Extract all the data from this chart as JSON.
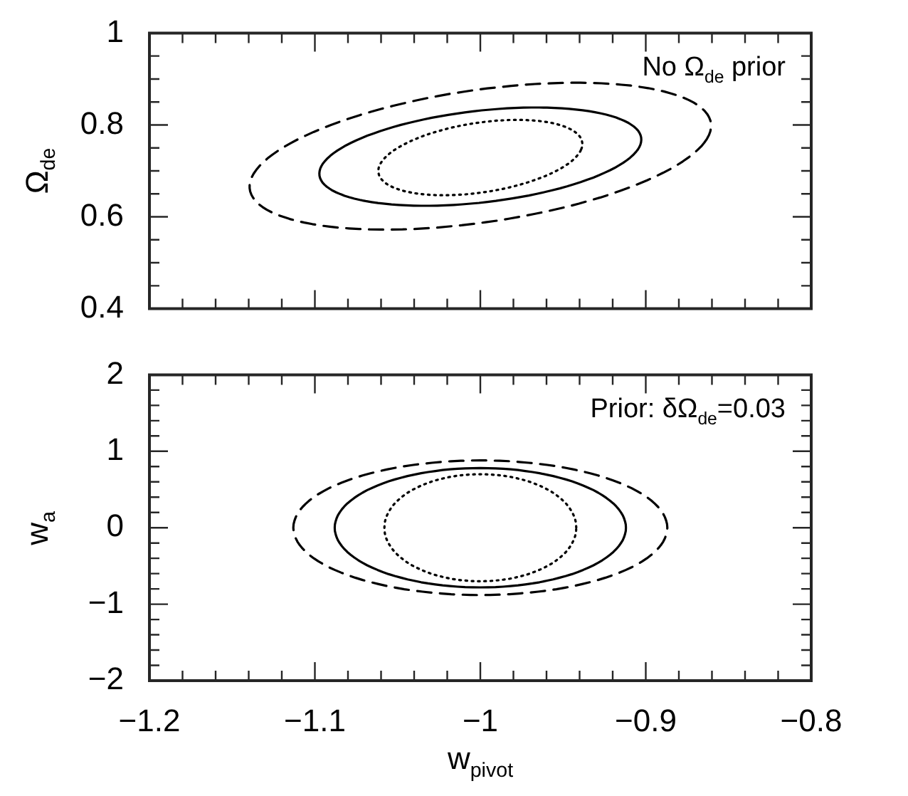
{
  "chart_data": [
    {
      "type": "line",
      "ylabel": "Ω$_{de}$",
      "annotations": [
        "No Ω$_{de}$ prior"
      ],
      "xlim": [
        -1.2,
        -0.8
      ],
      "ylim": [
        0.4,
        1
      ],
      "tick_labels": "y",
      "xticks": [
        -1.2,
        {
          "value": -1.18,
          "label": null
        },
        {
          "value": -1.16,
          "label": null
        },
        {
          "value": -1.14,
          "label": null
        },
        {
          "value": -1.12,
          "label": null
        },
        -1.1,
        {
          "value": -1.08,
          "label": null
        },
        {
          "value": -1.06,
          "label": null
        },
        {
          "value": -1.04,
          "label": null
        },
        {
          "value": -1.02,
          "label": null
        },
        -1,
        {
          "value": -0.98,
          "label": null
        },
        {
          "value": -0.96,
          "label": null
        },
        {
          "value": -0.94,
          "label": null
        },
        {
          "value": -0.92,
          "label": null
        },
        -0.9,
        {
          "value": -0.88,
          "label": null
        },
        {
          "value": -0.86,
          "label": null
        },
        {
          "value": -0.84,
          "label": null
        },
        {
          "value": -0.82,
          "label": null
        },
        -0.8
      ],
      "yticks": [
        0.4,
        {
          "value": 0.45,
          "label": null
        },
        {
          "value": 0.5,
          "label": null
        },
        {
          "value": 0.55,
          "label": null
        },
        0.6,
        {
          "value": 0.65,
          "label": null
        },
        {
          "value": 0.7,
          "label": null
        },
        {
          "value": 0.75,
          "label": null
        },
        0.8,
        {
          "value": 0.85,
          "label": null
        },
        {
          "value": 0.9,
          "label": null
        },
        {
          "value": 0.95,
          "label": null
        },
        1
      ]
    },
    {
      "type": "line",
      "xlabel": "w$_{pivot}$",
      "ylabel": "w$_{a}$",
      "annotations": [
        "Prior: δΩ$_{de}$=0.03"
      ],
      "xlim": [
        -1.2,
        -0.8
      ],
      "ylim": [
        -2,
        2
      ],
      "xticks": [
        -1.2,
        {
          "value": -1.18,
          "label": null
        },
        {
          "value": -1.16,
          "label": null
        },
        {
          "value": -1.14,
          "label": null
        },
        {
          "value": -1.12,
          "label": null
        },
        -1.1,
        {
          "value": -1.08,
          "label": null
        },
        {
          "value": -1.06,
          "label": null
        },
        {
          "value": -1.04,
          "label": null
        },
        {
          "value": -1.02,
          "label": null
        },
        -1,
        {
          "value": -0.98,
          "label": null
        },
        {
          "value": -0.96,
          "label": null
        },
        {
          "value": -0.94,
          "label": null
        },
        {
          "value": -0.92,
          "label": null
        },
        -0.9,
        {
          "value": -0.88,
          "label": null
        },
        {
          "value": -0.86,
          "label": null
        },
        {
          "value": -0.84,
          "label": null
        },
        {
          "value": -0.82,
          "label": null
        },
        -0.8
      ],
      "yticks": [
        -2,
        {
          "value": -1.8,
          "label": null
        },
        {
          "value": -1.6,
          "label": null
        },
        {
          "value": -1.4,
          "label": null
        },
        {
          "value": -1.2,
          "label": null
        },
        -1,
        {
          "value": -0.8,
          "label": null
        },
        {
          "value": -0.6,
          "label": null
        },
        {
          "value": -0.4,
          "label": null
        },
        {
          "value": -0.2,
          "label": null
        },
        0,
        {
          "value": 0.2,
          "label": null
        },
        {
          "value": 0.4,
          "label": null
        },
        {
          "value": 0.6,
          "label": null
        },
        {
          "value": 0.8,
          "label": null
        },
        1,
        {
          "value": 1.2,
          "label": null
        },
        {
          "value": 1.4,
          "label": null
        },
        {
          "value": 1.6,
          "label": null
        },
        {
          "value": 1.8,
          "label": null
        },
        2
      ]
    }
  ]
}
